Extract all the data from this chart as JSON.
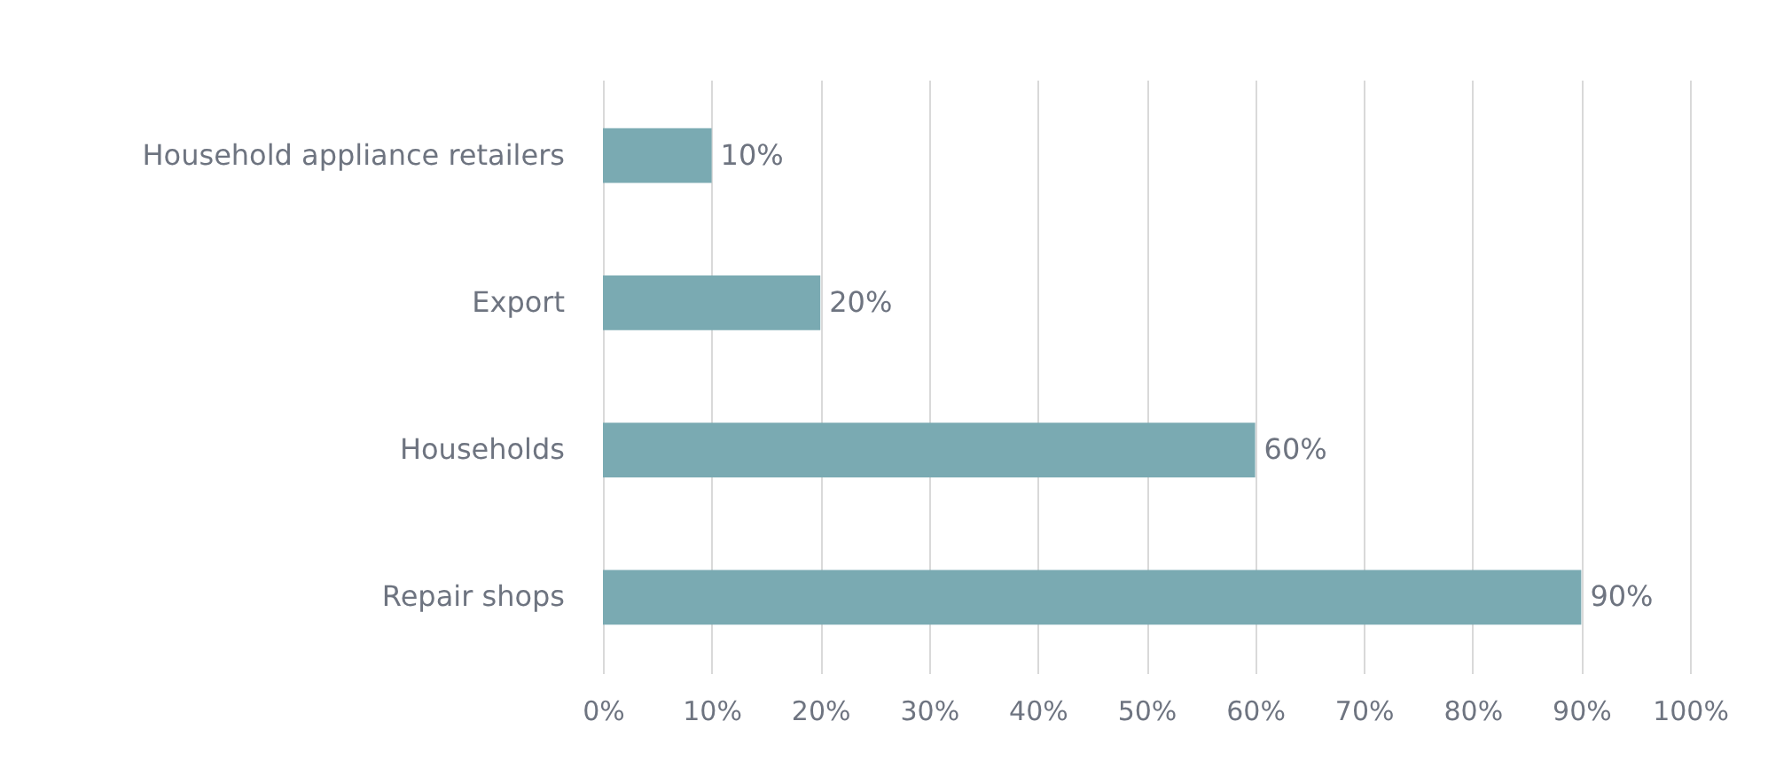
{
  "chart_data": {
    "type": "bar",
    "orientation": "horizontal",
    "categories": [
      "Household appliance retailers",
      "Export",
      "Households",
      "Repair shops"
    ],
    "values": [
      10,
      20,
      60,
      90
    ],
    "color": "#7aaab2",
    "xlim": [
      0,
      100
    ],
    "xticks": [
      {
        "value": 0,
        "label": "0%"
      },
      {
        "value": 10,
        "label": "10%"
      },
      {
        "value": 20,
        "label": "20%"
      },
      {
        "value": 30,
        "label": "30%"
      },
      {
        "value": 40,
        "label": "40%"
      },
      {
        "value": 50,
        "label": "50%"
      },
      {
        "value": 60,
        "label": "60%"
      },
      {
        "value": 70,
        "label": "70%"
      },
      {
        "value": 80,
        "label": "80%"
      },
      {
        "value": 90,
        "label": "90%"
      },
      {
        "value": 100,
        "label": "100%"
      }
    ],
    "value_labels": [
      "10%",
      "20%",
      "60%",
      "90%"
    ],
    "grid": "x"
  }
}
